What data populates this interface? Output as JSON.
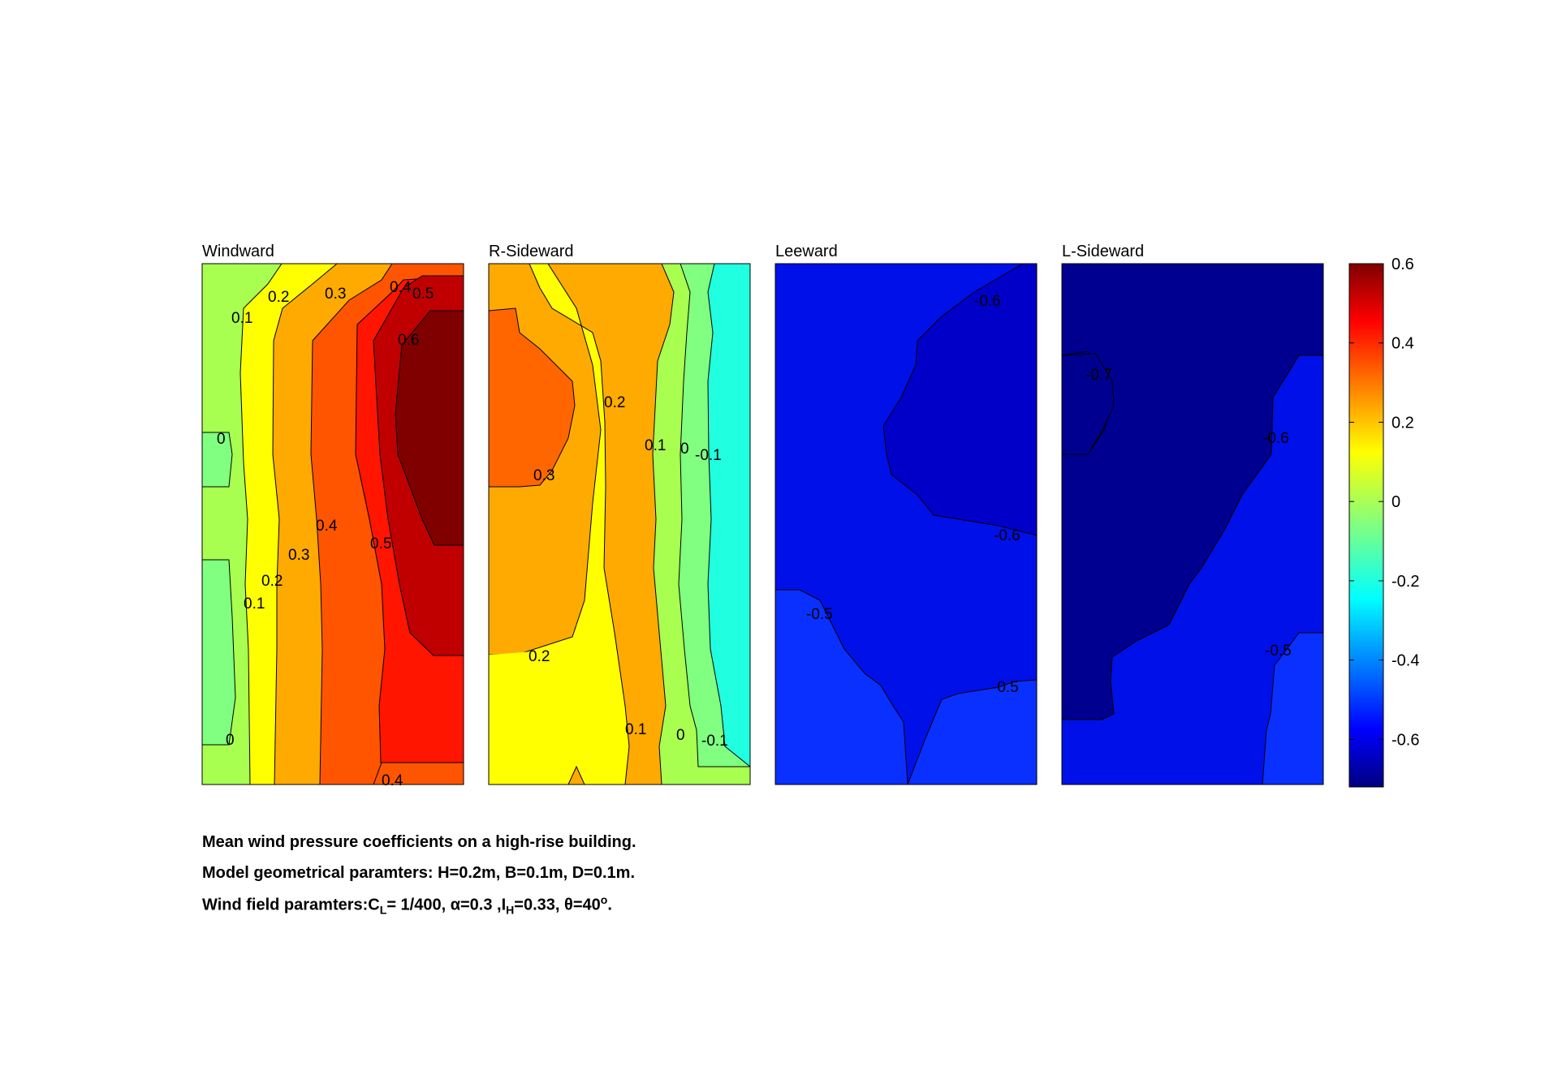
{
  "chart_data": {
    "type": "contour",
    "colormap": "jet",
    "clim": [
      -0.72,
      0.6
    ],
    "colorbar": {
      "ticks": [
        "0.6",
        "0.4",
        "0.2",
        "0",
        "-0.2",
        "-0.4",
        "-0.6"
      ],
      "tick_values": [
        0.6,
        0.4,
        0.2,
        0,
        -0.2,
        -0.4,
        -0.6
      ]
    },
    "panels": [
      {
        "title": "Windward",
        "levels_present": [
          0,
          0.1,
          0.2,
          0.3,
          0.4,
          0.5,
          0.6
        ],
        "contour_labels": [
          "0.1",
          "0.2",
          "0.3",
          "0.4",
          "0.5",
          "0.6",
          "0",
          "0.4",
          "0.5",
          "0.3",
          "0.2",
          "0.1",
          "0",
          "0.4"
        ],
        "min_cp": -0.05,
        "max_cp": 0.65
      },
      {
        "title": "R-Sideward",
        "levels_present": [
          -0.2,
          -0.1,
          0,
          0.1,
          0.2,
          0.3
        ],
        "contour_labels": [
          "0.2",
          "0.1",
          "0",
          "-0.1",
          "0.3",
          "0.2",
          "0.1",
          "0",
          "-0.1"
        ],
        "min_cp": -0.2,
        "max_cp": 0.33
      },
      {
        "title": "Leeward",
        "levels_present": [
          -0.6,
          -0.5
        ],
        "contour_labels": [
          "-0.6",
          "-0.6",
          "-0.5",
          "-0.5"
        ],
        "min_cp": -0.65,
        "max_cp": -0.45
      },
      {
        "title": "L-Sideward",
        "levels_present": [
          -0.7,
          -0.6,
          -0.5
        ],
        "contour_labels": [
          "-0.7",
          "-0.6",
          "-0.5"
        ],
        "min_cp": -0.72,
        "max_cp": -0.45
      }
    ],
    "caption": {
      "line1": "Mean wind pressure coefficients on a high-rise building.",
      "line2": "Model geometrical paramters: H=0.2m, B=0.1m, D=0.1m.",
      "line3_prefix": "Wind field paramters:C",
      "line3_sub1": "L",
      "line3_mid1": "= 1/400, α=0.3 ,I",
      "line3_sub2": "H",
      "line3_mid2": "=0.33, θ=40",
      "line3_sup": "o",
      "line3_end": "."
    }
  }
}
